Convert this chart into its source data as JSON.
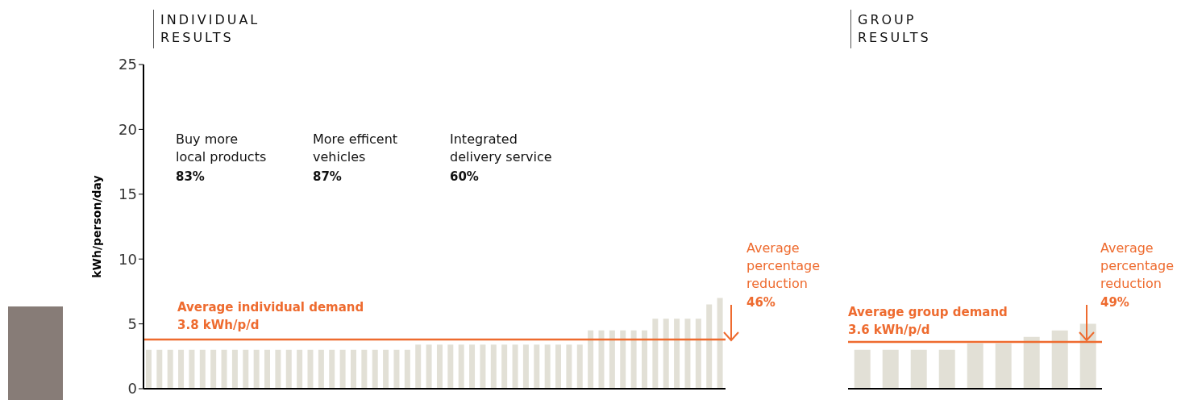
{
  "chart_data": [
    {
      "type": "bar",
      "title": "INDIVIDUAL RESULTS",
      "ylabel": "kWh/person/day",
      "categories": [
        null,
        null,
        null,
        null,
        null,
        null,
        null,
        null,
        null,
        null,
        null,
        null,
        null,
        null,
        null,
        null,
        null,
        null,
        null,
        null,
        null,
        null,
        null,
        null,
        null,
        null,
        null,
        null,
        null,
        null,
        null,
        null,
        null,
        null,
        null,
        null,
        null,
        null,
        null,
        null,
        null,
        null,
        null,
        null,
        null,
        null,
        null,
        null,
        null,
        null,
        null,
        null,
        null,
        null
      ],
      "values": [
        3.0,
        3.0,
        3.0,
        3.0,
        3.0,
        3.0,
        3.0,
        3.0,
        3.0,
        3.0,
        3.0,
        3.0,
        3.0,
        3.0,
        3.0,
        3.0,
        3.0,
        3.0,
        3.0,
        3.0,
        3.0,
        3.0,
        3.0,
        3.0,
        3.0,
        3.4,
        3.4,
        3.4,
        3.4,
        3.4,
        3.4,
        3.4,
        3.4,
        3.4,
        3.4,
        3.4,
        3.4,
        3.4,
        3.4,
        3.4,
        3.4,
        4.5,
        4.5,
        4.5,
        4.5,
        4.5,
        4.5,
        5.4,
        5.4,
        5.4,
        5.4,
        5.4,
        6.5,
        7.0
      ],
      "color": "#e2e0d6",
      "ylim": [
        0,
        25
      ],
      "yticks": [
        0,
        5,
        10,
        15,
        20,
        25
      ],
      "tick_labels": "y",
      "ref_lines": [
        {
          "axis": "y",
          "value": 3.8,
          "label": "Average individual demand\n3.8 kWh/p/d",
          "color": "#ee6b2f"
        }
      ],
      "annotations": [
        "Buy more\nlocal products",
        "83%",
        "More efficent\nvehicles",
        "87%",
        "Integrated\ndelivery service",
        "60%",
        "Average\npercentage\nreduction",
        "46%"
      ]
    },
    {
      "type": "bar",
      "title": "GROUP RESULTS",
      "categories": [
        null,
        null,
        null,
        null,
        null,
        null,
        null,
        null,
        null
      ],
      "values": [
        3.0,
        3.0,
        3.0,
        3.0,
        3.5,
        3.5,
        4.0,
        4.5,
        5.0
      ],
      "color": "#e2e0d6",
      "ylim": [
        0,
        25
      ],
      "tick_labels": false,
      "ref_lines": [
        {
          "axis": "y",
          "value": 3.6,
          "label": "Average group demand\n3.6 kWh/p/d",
          "color": "#ee6b2f"
        }
      ],
      "annotations": [
        "Average\npercentage\nreduction",
        "49%"
      ]
    }
  ]
}
